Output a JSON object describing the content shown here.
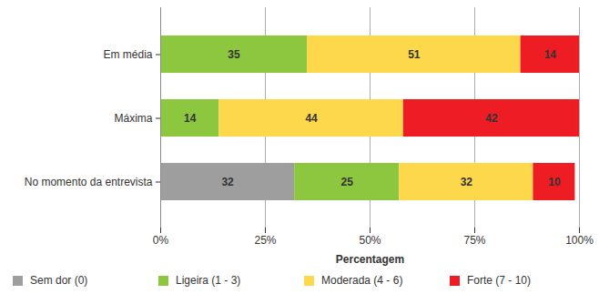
{
  "chart_data": {
    "type": "bar",
    "orientation": "horizontal",
    "stacked": true,
    "data_labels": true,
    "grid": true,
    "legend": "bottom",
    "categories": [
      "Em média",
      "Máxima",
      "No momento da entrevista"
    ],
    "series": [
      {
        "name": "Sem dor (0)",
        "color": "#9e9e9e",
        "values": [
          null,
          null,
          32
        ]
      },
      {
        "name": "Ligeira (1 - 3)",
        "color": "#8dc63f",
        "values": [
          35,
          14,
          25
        ]
      },
      {
        "name": "Moderada (4 - 6)",
        "color": "#fdd84b",
        "values": [
          51,
          44,
          32
        ]
      },
      {
        "name": "Forte (7 - 10)",
        "color": "#ee1d23",
        "values": [
          14,
          42,
          10
        ]
      }
    ],
    "xlabel": "Percentagem",
    "xlim": [
      0,
      100
    ],
    "xticks": [
      {
        "value": 0,
        "label": "0%"
      },
      {
        "value": 25,
        "label": "25%"
      },
      {
        "value": 50,
        "label": "50%"
      },
      {
        "value": 75,
        "label": "75%"
      },
      {
        "value": 100,
        "label": "100%"
      }
    ]
  }
}
